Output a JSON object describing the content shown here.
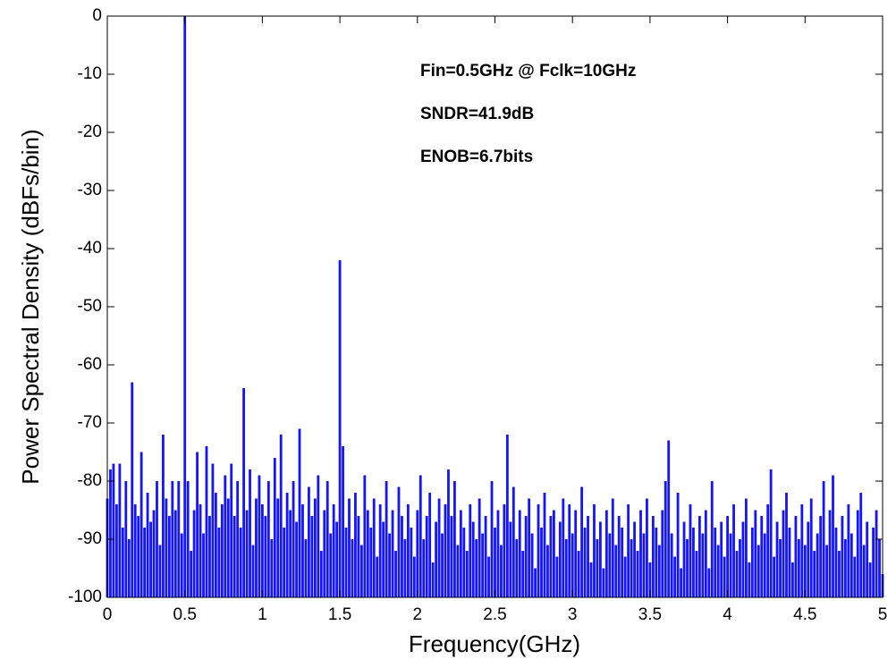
{
  "chart_data": {
    "type": "bar",
    "xlabel": "Frequency(GHz)",
    "ylabel": "Power Spectral Density (dBFs/bin)",
    "annotations": [
      "Fin=0.5GHz @ Fclk=10GHz",
      "SNDR=41.9dB",
      "ENOB=6.7bits"
    ],
    "color": "#1414ff",
    "xlim": [
      0,
      5
    ],
    "xticks": [
      0,
      0.5,
      1,
      1.5,
      2,
      2.5,
      3,
      3.5,
      4,
      4.5,
      5
    ],
    "ylim": [
      -100,
      0
    ],
    "yticks": [
      0,
      -10,
      -20,
      -30,
      -40,
      -50,
      -60,
      -70,
      -80,
      -90,
      -100
    ],
    "x": [
      0,
      0.02,
      0.04,
      0.06,
      0.08,
      0.1,
      0.12,
      0.14,
      0.16,
      0.18,
      0.2,
      0.22,
      0.24,
      0.26,
      0.28,
      0.3,
      0.32,
      0.34,
      0.36,
      0.38,
      0.4,
      0.42,
      0.44,
      0.46,
      0.48,
      0.5,
      0.52,
      0.54,
      0.56,
      0.58,
      0.6,
      0.62,
      0.64,
      0.66,
      0.68,
      0.7,
      0.72,
      0.74,
      0.76,
      0.78,
      0.8,
      0.82,
      0.84,
      0.86,
      0.88,
      0.9,
      0.92,
      0.94,
      0.96,
      0.98,
      1,
      1.02,
      1.04,
      1.06,
      1.08,
      1.1,
      1.12,
      1.14,
      1.16,
      1.18,
      1.2,
      1.22,
      1.24,
      1.26,
      1.28,
      1.3,
      1.32,
      1.34,
      1.36,
      1.38,
      1.4,
      1.42,
      1.44,
      1.46,
      1.48,
      1.5,
      1.52,
      1.54,
      1.56,
      1.58,
      1.6,
      1.62,
      1.64,
      1.66,
      1.68,
      1.7,
      1.72,
      1.74,
      1.76,
      1.78,
      1.8,
      1.82,
      1.84,
      1.86,
      1.88,
      1.9,
      1.92,
      1.94,
      1.96,
      1.98,
      2,
      2.02,
      2.04,
      2.06,
      2.08,
      2.1,
      2.12,
      2.14,
      2.16,
      2.18,
      2.2,
      2.22,
      2.24,
      2.26,
      2.28,
      2.3,
      2.32,
      2.34,
      2.36,
      2.38,
      2.4,
      2.42,
      2.44,
      2.46,
      2.48,
      2.5,
      2.52,
      2.54,
      2.56,
      2.58,
      2.6,
      2.62,
      2.64,
      2.66,
      2.68,
      2.7,
      2.72,
      2.74,
      2.76,
      2.78,
      2.8,
      2.82,
      2.84,
      2.86,
      2.88,
      2.9,
      2.92,
      2.94,
      2.96,
      2.98,
      3,
      3.02,
      3.04,
      3.06,
      3.08,
      3.1,
      3.12,
      3.14,
      3.16,
      3.18,
      3.2,
      3.22,
      3.24,
      3.26,
      3.28,
      3.3,
      3.32,
      3.34,
      3.36,
      3.38,
      3.4,
      3.42,
      3.44,
      3.46,
      3.48,
      3.5,
      3.52,
      3.54,
      3.56,
      3.58,
      3.6,
      3.62,
      3.64,
      3.66,
      3.68,
      3.7,
      3.72,
      3.74,
      3.76,
      3.78,
      3.8,
      3.82,
      3.84,
      3.86,
      3.88,
      3.9,
      3.92,
      3.94,
      3.96,
      3.98,
      4,
      4.02,
      4.04,
      4.06,
      4.08,
      4.1,
      4.12,
      4.14,
      4.16,
      4.18,
      4.2,
      4.22,
      4.24,
      4.26,
      4.28,
      4.3,
      4.32,
      4.34,
      4.36,
      4.38,
      4.4,
      4.42,
      4.44,
      4.46,
      4.48,
      4.5,
      4.52,
      4.54,
      4.56,
      4.58,
      4.6,
      4.62,
      4.64,
      4.66,
      4.68,
      4.7,
      4.72,
      4.74,
      4.76,
      4.78,
      4.8,
      4.82,
      4.84,
      4.86,
      4.88,
      4.9,
      4.92,
      4.94,
      4.96,
      4.98,
      5
    ],
    "values": [
      -83,
      -78,
      -77,
      -84,
      -77,
      -88,
      -80,
      -90,
      -63,
      -84,
      -86,
      -75,
      -88,
      -82,
      -87,
      -85,
      -80,
      -91,
      -72,
      -83,
      -86,
      -80,
      -85,
      -80,
      -89,
      0,
      -80,
      -92,
      -85,
      -75,
      -84,
      -89,
      -74,
      -86,
      -77,
      -82,
      -88,
      -84,
      -79,
      -83,
      -77,
      -86,
      -80,
      -88,
      -64,
      -85,
      -78,
      -91,
      -83,
      -79,
      -84,
      -86,
      -80,
      -90,
      -76,
      -83,
      -72,
      -88,
      -82,
      -85,
      -80,
      -87,
      -71,
      -84,
      -90,
      -81,
      -86,
      -83,
      -79,
      -92,
      -85,
      -80,
      -89,
      -84,
      -87,
      -42,
      -74,
      -88,
      -83,
      -90,
      -82,
      -86,
      -91,
      -79,
      -85,
      -88,
      -83,
      -93,
      -84,
      -87,
      -80,
      -89,
      -85,
      -92,
      -81,
      -86,
      -90,
      -84,
      -88,
      -93,
      -85,
      -79,
      -90,
      -86,
      -82,
      -94,
      -87,
      -83,
      -89,
      -84,
      -78,
      -86,
      -80,
      -91,
      -85,
      -88,
      -92,
      -84,
      -87,
      -90,
      -83,
      -89,
      -86,
      -93,
      -80,
      -88,
      -85,
      -91,
      -84,
      -72,
      -87,
      -81,
      -90,
      -85,
      -92,
      -86,
      -83,
      -89,
      -95,
      -84,
      -88,
      -82,
      -91,
      -86,
      -85,
      -93,
      -87,
      -83,
      -90,
      -84,
      -89,
      -85,
      -92,
      -81,
      -88,
      -86,
      -94,
      -84,
      -90,
      -87,
      -95,
      -85,
      -89,
      -83,
      -91,
      -86,
      -88,
      -93,
      -84,
      -90,
      -87,
      -92,
      -85,
      -89,
      -83,
      -94,
      -86,
      -88,
      -91,
      -85,
      -80,
      -73,
      -89,
      -93,
      -82,
      -95,
      -87,
      -90,
      -84,
      -88,
      -92,
      -86,
      -89,
      -85,
      -95,
      -80,
      -88,
      -91,
      -87,
      -93,
      -86,
      -89,
      -84,
      -92,
      -90,
      -87,
      -83,
      -94,
      -88,
      -85,
      -91,
      -86,
      -89,
      -84,
      -78,
      -93,
      -87,
      -90,
      -85,
      -82,
      -88,
      -94,
      -86,
      -90,
      -84,
      -91,
      -87,
      -83,
      -92,
      -89,
      -86,
      -80,
      -91,
      -85,
      -79,
      -88,
      -92,
      -86,
      -90,
      -84,
      -89,
      -93,
      -85,
      -82,
      -91,
      -87,
      -94,
      -88,
      -85,
      -90,
      -96
    ]
  }
}
